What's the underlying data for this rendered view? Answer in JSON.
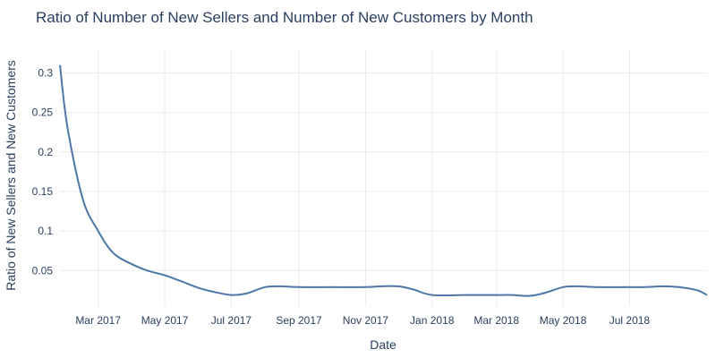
{
  "chart_data": {
    "type": "line",
    "title": "Ratio of Number of New Sellers and Number of New Customers by Month",
    "xlabel": "Date",
    "ylabel": "Ratio of New Sellers and New Customers",
    "x_ticks": [
      "Mar 2017",
      "May 2017",
      "Jul 2017",
      "Sep 2017",
      "Nov 2017",
      "Jan 2018",
      "Mar 2018",
      "May 2018",
      "Jul 2018"
    ],
    "y_ticks": [
      "0.05",
      "0.1",
      "0.15",
      "0.2",
      "0.25",
      "0.3"
    ],
    "ylim": [
      0.005,
      0.33
    ],
    "xlim": [
      "2017-01-25",
      "2018-09-10"
    ],
    "grid": true,
    "legend": false,
    "series": [
      {
        "color": "#4c78a8",
        "x": [
          "2017-01-25",
          "2017-02-01",
          "2017-02-15",
          "2017-03-01",
          "2017-03-15",
          "2017-04-01",
          "2017-04-15",
          "2017-05-01",
          "2017-05-15",
          "2017-06-01",
          "2017-06-15",
          "2017-07-01",
          "2017-07-15",
          "2017-08-01",
          "2017-08-15",
          "2017-09-01",
          "2017-10-01",
          "2017-11-01",
          "2017-11-15",
          "2017-12-01",
          "2017-12-15",
          "2018-01-01",
          "2018-02-01",
          "2018-03-01",
          "2018-03-15",
          "2018-04-01",
          "2018-04-15",
          "2018-05-01",
          "2018-05-15",
          "2018-06-01",
          "2018-07-01",
          "2018-07-15",
          "2018-08-01",
          "2018-08-15",
          "2018-09-01",
          "2018-09-10"
        ],
        "y": [
          0.31,
          0.23,
          0.14,
          0.1,
          0.072,
          0.058,
          0.05,
          0.044,
          0.037,
          0.028,
          0.023,
          0.019,
          0.021,
          0.029,
          0.03,
          0.029,
          0.029,
          0.029,
          0.03,
          0.03,
          0.026,
          0.019,
          0.019,
          0.019,
          0.019,
          0.018,
          0.022,
          0.029,
          0.03,
          0.029,
          0.029,
          0.029,
          0.03,
          0.029,
          0.025,
          0.019
        ]
      }
    ]
  }
}
